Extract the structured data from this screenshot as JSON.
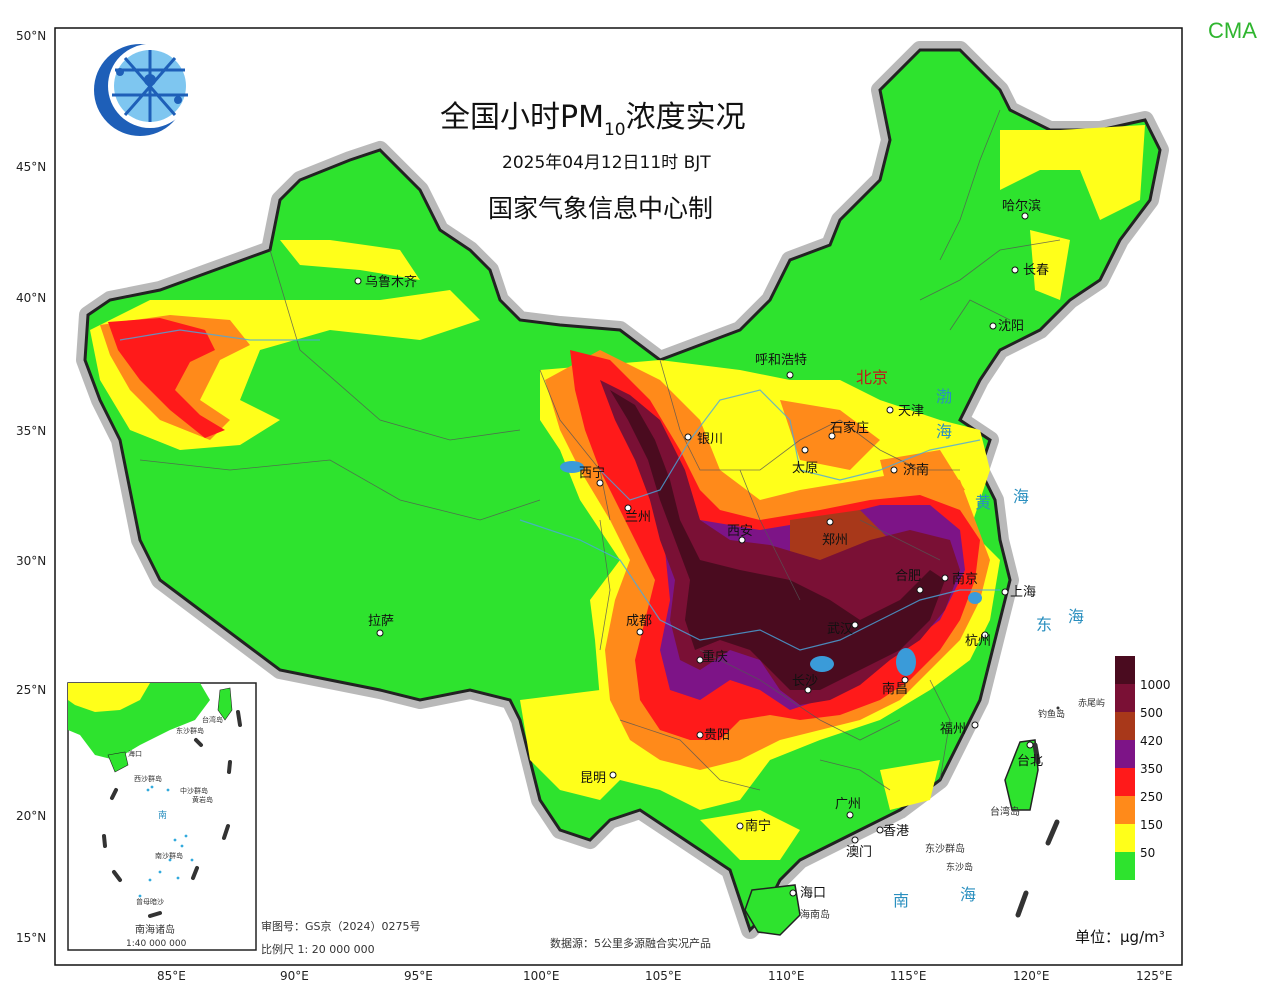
{
  "cma_label": "CMA",
  "title_main": "全国小时PM",
  "title_sub_digits": "10",
  "title_tail": "浓度实况",
  "datetime": "2025年04月12日11时 BJT",
  "maker": "国家气象信息中心制",
  "lat_labels": [
    "50°N",
    "45°N",
    "40°N",
    "35°N",
    "30°N",
    "25°N",
    "20°N",
    "15°N"
  ],
  "lon_labels": [
    "85°E",
    "90°E",
    "95°E",
    "100°E",
    "105°E",
    "110°E",
    "115°E",
    "120°E",
    "125°E"
  ],
  "cities": {
    "beijing": "北京",
    "tianjin": "天津",
    "shijiazhuang": "石家庄",
    "taiyuan": "太原",
    "jinan": "济南",
    "huhehaote": "呼和浩特",
    "yinchuan": "银川",
    "xining": "西宁",
    "lanzhou": "兰州",
    "xian": "西安",
    "zhengzhou": "郑州",
    "nanjing": "南京",
    "shanghai": "上海",
    "hangzhou": "杭州",
    "hefei": "合肥",
    "wuhan": "武汉",
    "changsha": "长沙",
    "nanchang": "南昌",
    "fuzhou": "福州",
    "taibei": "台北",
    "guangzhou": "广州",
    "xianggang": "香港",
    "aomen": "澳门",
    "nanning": "南宁",
    "haikou": "海口",
    "kunming": "昆明",
    "guiyang": "贵阳",
    "chengdu": "成都",
    "chongqing": "重庆",
    "lasa": "拉萨",
    "wulumuqi": "乌鲁木齐",
    "haerbin": "哈尔滨",
    "changchun": "长春",
    "shenyang": "沈阳"
  },
  "seas": {
    "bo1": "渤",
    "bo2": "海",
    "huang1": "黄",
    "huang2": "海",
    "dong1": "东",
    "dong2": "海",
    "nan1": "南",
    "nan2": "海"
  },
  "islands": {
    "diaoyu": "钓鱼岛",
    "chiwei": "赤尾屿",
    "taiwan": "台湾岛",
    "dongsha": "东沙群岛",
    "dongsha2": "东沙岛",
    "hainan": "海南岛"
  },
  "inset": {
    "label1": "南海诸岛",
    "label2": "1:40 000 000",
    "mini": [
      "台湾岛",
      "东沙群岛",
      "海口",
      "西沙群岛",
      "中沙群岛",
      "黄岩岛",
      "南沙群岛",
      "曾母暗沙",
      "南"
    ]
  },
  "legend": {
    "values": [
      "1000",
      "500",
      "420",
      "350",
      "250",
      "150",
      "50"
    ],
    "colors": [
      "#4a0b1f",
      "#7a1035",
      "#a8381a",
      "#7d1487",
      "#ff1a1a",
      "#ff8a1a",
      "#ffff1a",
      "#2ee32e"
    ],
    "unit": "单位：μg/m³"
  },
  "footer": {
    "review": "审图号：GS京（2024）0275号",
    "scale": "比例尺  1: 20 000 000",
    "source": "数据源：5公里多源融合实况产品"
  },
  "colors": {
    "green": "#2ee32e",
    "yellow": "#ffff1a",
    "orange": "#ff8a1a",
    "red": "#ff1a1a",
    "purple": "#7d1487",
    "darkred": "#7a1035",
    "darkest": "#4a0b1f"
  }
}
